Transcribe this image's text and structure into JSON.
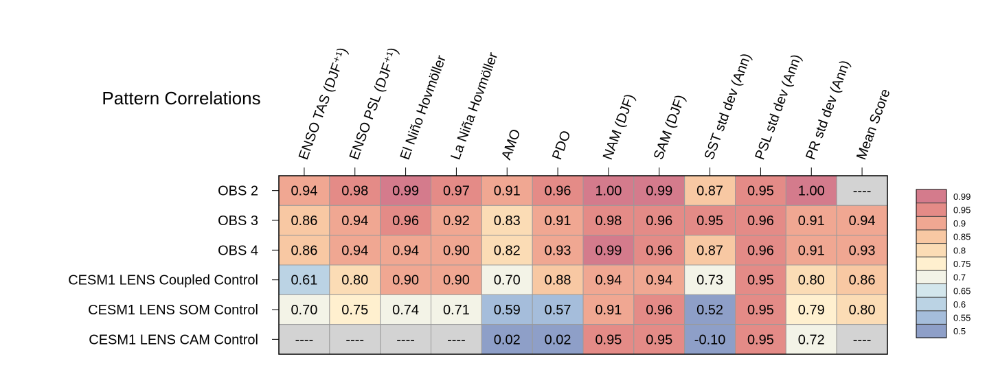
{
  "chart_data": {
    "type": "heatmap",
    "title": "Pattern Correlations",
    "columns": [
      "ENSO TAS (DJF⁺¹)",
      "ENSO PSL (DJF⁺¹)",
      "El Niño Hovmöller",
      "La Niña Hovmöller",
      "AMO",
      "PDO",
      "NAM (DJF)",
      "SAM (DJF)",
      "SST std dev (Ann)",
      "PSL std dev (Ann)",
      "PR std dev (Ann)",
      "Mean Score"
    ],
    "rows": [
      "OBS 2",
      "OBS 3",
      "OBS 4",
      "CESM1 LENS Coupled Control",
      "CESM1 LENS SOM Control",
      "CESM1 LENS CAM Control"
    ],
    "cell_text": [
      [
        "0.94",
        "0.98",
        "0.99",
        "0.97",
        "0.91",
        "0.96",
        "1.00",
        "0.99",
        "0.87",
        "0.95",
        "1.00",
        "----"
      ],
      [
        "0.86",
        "0.94",
        "0.96",
        "0.92",
        "0.83",
        "0.91",
        "0.98",
        "0.96",
        "0.95",
        "0.96",
        "0.91",
        "0.94"
      ],
      [
        "0.86",
        "0.94",
        "0.94",
        "0.90",
        "0.82",
        "0.93",
        "0.99",
        "0.96",
        "0.87",
        "0.96",
        "0.91",
        "0.93"
      ],
      [
        "0.61",
        "0.80",
        "0.90",
        "0.90",
        "0.70",
        "0.88",
        "0.94",
        "0.94",
        "0.73",
        "0.95",
        "0.80",
        "0.86"
      ],
      [
        "0.70",
        "0.75",
        "0.74",
        "0.71",
        "0.59",
        "0.57",
        "0.91",
        "0.96",
        "0.52",
        "0.95",
        "0.79",
        "0.80"
      ],
      [
        "----",
        "----",
        "----",
        "----",
        "0.02",
        "0.02",
        "0.95",
        "0.95",
        "-0.10",
        "0.95",
        "0.72",
        "----"
      ]
    ],
    "missing_color": "#d3d3d3",
    "colorbar": {
      "levels": [
        "0.5",
        "0.55",
        "0.6",
        "0.65",
        "0.7",
        "0.75",
        "0.8",
        "0.85",
        "0.9",
        "0.95",
        "0.99"
      ],
      "colors": [
        "#8e9fc8",
        "#a5bddb",
        "#bbd3e4",
        "#d3e6ec",
        "#f3f3e7",
        "#fff0cf",
        "#fbdcb5",
        "#f8c8a3",
        "#f0a792",
        "#e48b87",
        "#d47b8c"
      ]
    }
  }
}
